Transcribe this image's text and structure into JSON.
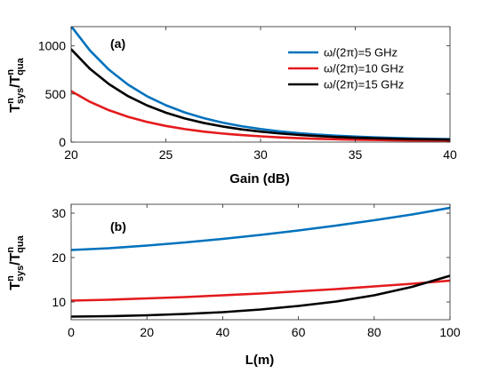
{
  "colors": {
    "series_5ghz": "#0072BD",
    "series_10ghz": "#E41A1C",
    "series_15ghz": "#000000",
    "axes": "#262626"
  },
  "chart_data": [
    {
      "panel_label": "(a)",
      "type": "line",
      "xlabel": "Gain (dB)",
      "ylabel_base": "T",
      "ylabel_sup_1": "n",
      "ylabel_sub_1": "sys",
      "ylabel_slash": "/T",
      "ylabel_sup_2": "n",
      "ylabel_sub_2": "qua",
      "xlim": [
        20,
        40
      ],
      "ylim": [
        0,
        1200
      ],
      "xticks": [
        20,
        25,
        30,
        35,
        40
      ],
      "yticks": [
        0,
        500,
        1000
      ],
      "grid": false,
      "legend_position": "top-right",
      "series": [
        {
          "name": "ω/(2π)=5 GHz",
          "color_key": "series_5ghz",
          "x": [
            20,
            21,
            22,
            23,
            24,
            25,
            26,
            27,
            28,
            29,
            30,
            31,
            32,
            33,
            34,
            35,
            36,
            37,
            38,
            39,
            40
          ],
          "y": [
            1205,
            950,
            752,
            598,
            477,
            383,
            308,
            249,
            202,
            165,
            136,
            112,
            93,
            78,
            66,
            57,
            49,
            43,
            38,
            34,
            31
          ]
        },
        {
          "name": "ω/(2π)=10 GHz",
          "color_key": "series_10ghz",
          "x": [
            20,
            21,
            22,
            23,
            24,
            25,
            26,
            27,
            28,
            29,
            30,
            31,
            32,
            33,
            34,
            35,
            36,
            37,
            38,
            39,
            40
          ],
          "y": [
            530,
            418,
            331,
            263,
            210,
            168,
            135,
            109,
            89,
            73,
            60,
            49,
            41,
            34,
            29,
            25,
            22,
            19,
            17,
            15,
            14
          ]
        },
        {
          "name": "ω/(2π)=15 GHz",
          "color_key": "series_15ghz",
          "x": [
            20,
            21,
            22,
            23,
            24,
            25,
            26,
            27,
            28,
            29,
            30,
            31,
            32,
            33,
            34,
            35,
            36,
            37,
            38,
            39,
            40
          ],
          "y": [
            965,
            760,
            602,
            478,
            382,
            306,
            246,
            199,
            162,
            132,
            109,
            90,
            75,
            63,
            53,
            46,
            40,
            35,
            31,
            28,
            26
          ]
        }
      ]
    },
    {
      "panel_label": "(b)",
      "type": "line",
      "xlabel": "L(m)",
      "ylabel_base": "T",
      "ylabel_sup_1": "n",
      "ylabel_sub_1": "sys",
      "ylabel_slash": "/T",
      "ylabel_sup_2": "n",
      "ylabel_sub_2": "qua",
      "xlim": [
        0,
        100
      ],
      "ylim": [
        6,
        32
      ],
      "xticks": [
        0,
        20,
        40,
        60,
        80,
        100
      ],
      "yticks": [
        10,
        20,
        30
      ],
      "grid": false,
      "series": [
        {
          "name": "ω/(2π)=5 GHz",
          "color_key": "series_5ghz",
          "x": [
            0,
            10,
            20,
            30,
            40,
            50,
            60,
            70,
            80,
            90,
            100
          ],
          "y": [
            21.7,
            22.1,
            22.7,
            23.4,
            24.2,
            25.1,
            26.1,
            27.2,
            28.4,
            29.7,
            31.2
          ]
        },
        {
          "name": "ω/(2π)=10 GHz",
          "color_key": "series_10ghz",
          "x": [
            0,
            10,
            20,
            30,
            40,
            50,
            60,
            70,
            80,
            90,
            100
          ],
          "y": [
            10.3,
            10.5,
            10.8,
            11.1,
            11.5,
            11.9,
            12.4,
            12.9,
            13.5,
            14.1,
            14.8
          ]
        },
        {
          "name": "ω/(2π)=15 GHz",
          "color_key": "series_15ghz",
          "x": [
            0,
            10,
            20,
            30,
            40,
            50,
            60,
            70,
            80,
            90,
            100
          ],
          "y": [
            6.7,
            6.8,
            7.0,
            7.3,
            7.7,
            8.3,
            9.1,
            10.1,
            11.5,
            13.4,
            15.9
          ]
        }
      ]
    }
  ]
}
